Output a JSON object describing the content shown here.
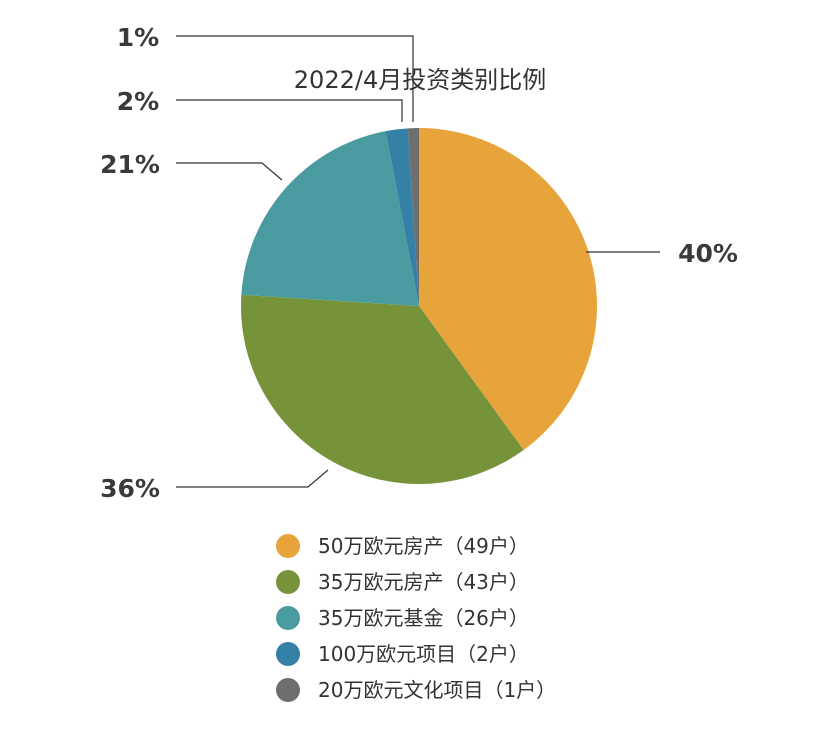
{
  "chart_data": {
    "type": "pie",
    "title": "2022/4月投资类别比例",
    "categories": [
      "50万欧元房产（49户）",
      "35万欧元房产（43户）",
      "35万欧元基金（26户）",
      "100万欧元项目（2户）",
      "20万欧元文化项目（1户）"
    ],
    "values": [
      40,
      36,
      21,
      2,
      1
    ],
    "data_labels": [
      "40%",
      "36%",
      "21%",
      "2%",
      "1%"
    ],
    "colors": [
      "#E7A43B",
      "#76933A",
      "#4A9B9F",
      "#3580A7",
      "#6E6E6E"
    ],
    "legend_position": "bottom"
  }
}
